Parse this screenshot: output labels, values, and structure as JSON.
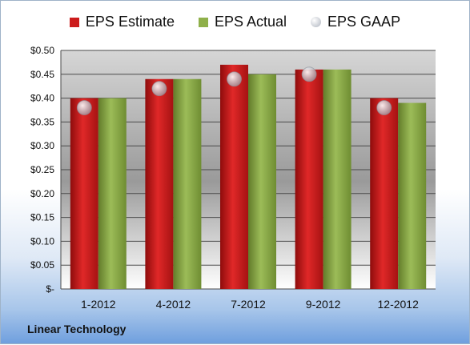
{
  "chart_data": {
    "type": "bar",
    "categories": [
      "1-2012",
      "4-2012",
      "7-2012",
      "9-2012",
      "12-2012"
    ],
    "series": [
      {
        "name": "EPS Estimate",
        "type": "bar",
        "color": "#cc1c1c",
        "values": [
          0.4,
          0.44,
          0.47,
          0.46,
          0.4
        ]
      },
      {
        "name": "EPS Actual",
        "type": "bar",
        "color": "#8fb04a",
        "values": [
          0.4,
          0.44,
          0.45,
          0.46,
          0.39
        ]
      },
      {
        "name": "EPS GAAP",
        "type": "marker",
        "color": "#c0c4cc",
        "values": [
          0.38,
          0.42,
          0.44,
          0.45,
          0.38
        ]
      }
    ],
    "yticks": [
      "$-",
      "$0.05",
      "$0.10",
      "$0.15",
      "$0.20",
      "$0.25",
      "$0.30",
      "$0.35",
      "$0.40",
      "$0.45",
      "$0.50"
    ],
    "ylim": [
      0,
      0.5
    ],
    "grid": true,
    "legend_position": "top"
  },
  "footer": {
    "company": "Linear Technology"
  }
}
